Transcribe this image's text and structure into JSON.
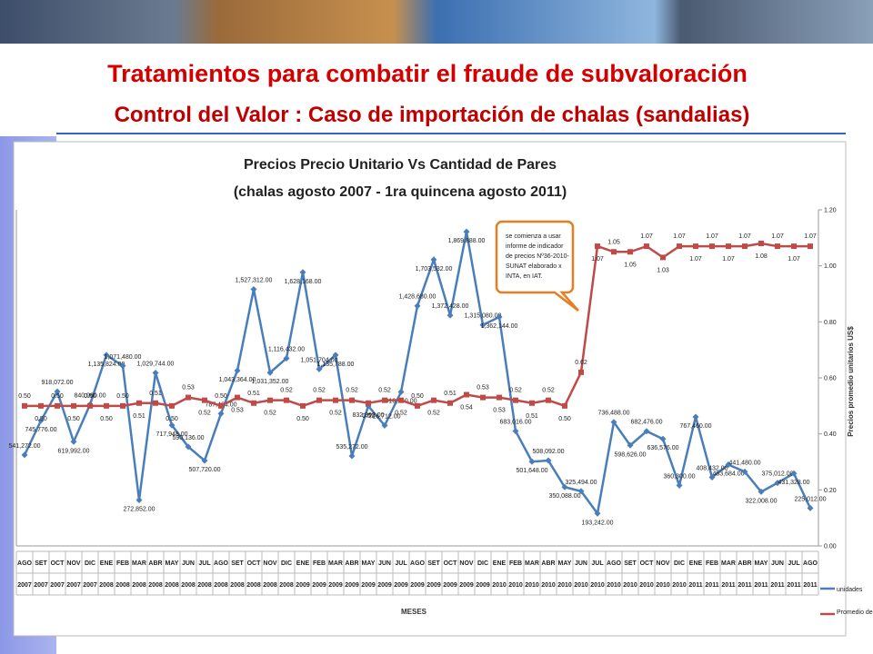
{
  "slide": {
    "title": "Tratamientos para combatir el fraude de subvaloración",
    "subtitle": "Control del Valor :  Caso de importación de chalas (sandalias)"
  },
  "chart_data": {
    "type": "line",
    "title": [
      "Precios Precio Unitario Vs Cantidad de Pares",
      "(chalas  agosto 2007 - 1ra quincena agosto 2011)"
    ],
    "x_label": "MESES",
    "y2_label": "Precios promedio unitarios US$",
    "categories": [
      [
        "AGO",
        "2007"
      ],
      [
        "SET",
        "2007"
      ],
      [
        "OCT",
        "2007"
      ],
      [
        "NOV",
        "2007"
      ],
      [
        "DIC",
        "2007"
      ],
      [
        "ENE",
        "2008"
      ],
      [
        "FEB",
        "2008"
      ],
      [
        "MAR",
        "2008"
      ],
      [
        "ABR",
        "2008"
      ],
      [
        "MAY",
        "2008"
      ],
      [
        "JUN",
        "2008"
      ],
      [
        "JUL",
        "2008"
      ],
      [
        "AGO",
        "2008"
      ],
      [
        "SET",
        "2008"
      ],
      [
        "OCT",
        "2008"
      ],
      [
        "NOV",
        "2008"
      ],
      [
        "DIC",
        "2008"
      ],
      [
        "ENE",
        "2009"
      ],
      [
        "FEB",
        "2009"
      ],
      [
        "MAR",
        "2009"
      ],
      [
        "ABR",
        "2009"
      ],
      [
        "MAY",
        "2009"
      ],
      [
        "JUN",
        "2009"
      ],
      [
        "JUL",
        "2009"
      ],
      [
        "AGO",
        "2009"
      ],
      [
        "SET",
        "2009"
      ],
      [
        "OCT",
        "2009"
      ],
      [
        "NOV",
        "2009"
      ],
      [
        "DIC",
        "2009"
      ],
      [
        "ENE",
        "2010"
      ],
      [
        "FEB",
        "2010"
      ],
      [
        "MAR",
        "2010"
      ],
      [
        "ABR",
        "2010"
      ],
      [
        "MAY",
        "2010"
      ],
      [
        "JUN",
        "2010"
      ],
      [
        "JUL",
        "2010"
      ],
      [
        "AGO",
        "2010"
      ],
      [
        "SET",
        "2010"
      ],
      [
        "OCT",
        "2010"
      ],
      [
        "NOV",
        "2010"
      ],
      [
        "DIC",
        "2010"
      ],
      [
        "ENE",
        "2011"
      ],
      [
        "FEB",
        "2011"
      ],
      [
        "MAR",
        "2011"
      ],
      [
        "ABR",
        "2011"
      ],
      [
        "MAY",
        "2011"
      ],
      [
        "JUN",
        "2011"
      ],
      [
        "JUL",
        "2011"
      ],
      [
        "AGO",
        "2011"
      ]
    ],
    "series": [
      {
        "name": "unidades",
        "color": "#4a7ebb",
        "axis": "y",
        "values": [
          541272,
          745776,
          918072,
          619992,
          840960,
          1135824,
          1071480,
          272852,
          1029744,
          717948,
          590136,
          507720,
          787464,
          1043364,
          1527312,
          1031352,
          1116432,
          1628168,
          1051704,
          1135788,
          535272,
          832392,
          716712,
          916140,
          1428680,
          1703532,
          1372428,
          1869888,
          1315080,
          1362144,
          683016,
          501648,
          508092,
          350088,
          325494,
          193242,
          736488,
          598626,
          682476,
          636576,
          360300,
          767460,
          408432,
          483684,
          441480,
          322008,
          375012,
          431328,
          225012
        ],
        "value_labels": [
          "541,272.00",
          "745,776.00",
          "918,072.00",
          "619,992.00",
          "840,960.00",
          "1,135,824.00",
          "1,071,480.00",
          "272,852.00",
          "1,029,744.00",
          "717,948.00",
          "590,136.00",
          "507,720.00",
          "787,464.00",
          "1,043,364.00",
          "1,527,312.00",
          "1,031,352.00",
          "1,116,432.00",
          "1,628,168.00",
          "1,051,704.00",
          "1,135,788.00",
          "535,272.00",
          "832,392.00",
          "716,712.00",
          "916,140.00",
          "1,428,680.00",
          "1,703,532.00",
          "1,372,428.00",
          "1,869,888.00",
          "1,315,080.00",
          "1,362,144.00",
          "683,016.00",
          "501,648.00",
          "508,092.00",
          "350,088.00",
          "325,494.00",
          "193,242.00",
          "736,488.00",
          "598,626.00",
          "682,476.00",
          "636,576.00",
          "360,300.00",
          "767,460.00",
          "408,432.00",
          "483,684.00",
          "441,480.00",
          "322,008.00",
          "375,012.00",
          "431,328.00",
          "225,012.00"
        ]
      },
      {
        "name": "Promedio de P.U.",
        "color": "#be4b48",
        "axis": "y2",
        "values": [
          0.5,
          0.5,
          0.5,
          0.5,
          0.5,
          0.5,
          0.5,
          0.51,
          0.51,
          0.5,
          0.53,
          0.52,
          0.5,
          0.53,
          0.51,
          0.52,
          0.52,
          0.5,
          0.52,
          0.52,
          0.52,
          0.51,
          0.52,
          0.52,
          0.5,
          0.52,
          0.51,
          0.54,
          0.53,
          0.53,
          0.52,
          0.51,
          0.52,
          0.5,
          0.62,
          1.07,
          1.05,
          1.05,
          1.07,
          1.03,
          1.07,
          1.07,
          1.07,
          1.07,
          1.07,
          1.08,
          1.07,
          1.07,
          1.07
        ],
        "value_labels": [
          "0.50",
          "0.50",
          "0.50",
          "0.50",
          "0.50",
          "0.50",
          "0.50",
          "0.51",
          "0.51",
          "0.50",
          "0.53",
          "0.52",
          "0.50",
          "0.53",
          "0.51",
          "0.52",
          "0.52",
          "0.50",
          "0.52",
          "0.52",
          "0.52",
          "0.51",
          "0.52",
          "0.52",
          "0.50",
          "0.52",
          "0.51",
          "0.54",
          "0.53",
          "0.53",
          "0.52",
          "0.51",
          "0.52",
          "0.50",
          "0.62",
          "1.07",
          "1.05",
          "1.05",
          "1.07",
          "1.03",
          "1.07",
          "1.07",
          "1.07",
          "1.07",
          "1.07",
          "1.08",
          "1.07",
          "1.07",
          "1.07"
        ]
      }
    ],
    "ylim": [
      0,
      2000000
    ],
    "y2lim": [
      0,
      1.2
    ],
    "y2ticks": [
      {
        "value": 0,
        "label": "0.00"
      },
      {
        "value": 0.2,
        "label": "0.20"
      },
      {
        "value": 0.4,
        "label": "0.40"
      },
      {
        "value": 0.6,
        "label": "0.60"
      },
      {
        "value": 0.8,
        "label": "0.80"
      },
      {
        "value": 1,
        "label": "1.00"
      },
      {
        "value": 1.2,
        "label": "1.20"
      }
    ],
    "grid": false,
    "legend": "bottom-right",
    "annotation": [
      "se comienza a usar",
      "informe de indicador",
      "de precios Nº36-2010-",
      "SUNAT elaborado x",
      "INTA, en IAT."
    ]
  }
}
